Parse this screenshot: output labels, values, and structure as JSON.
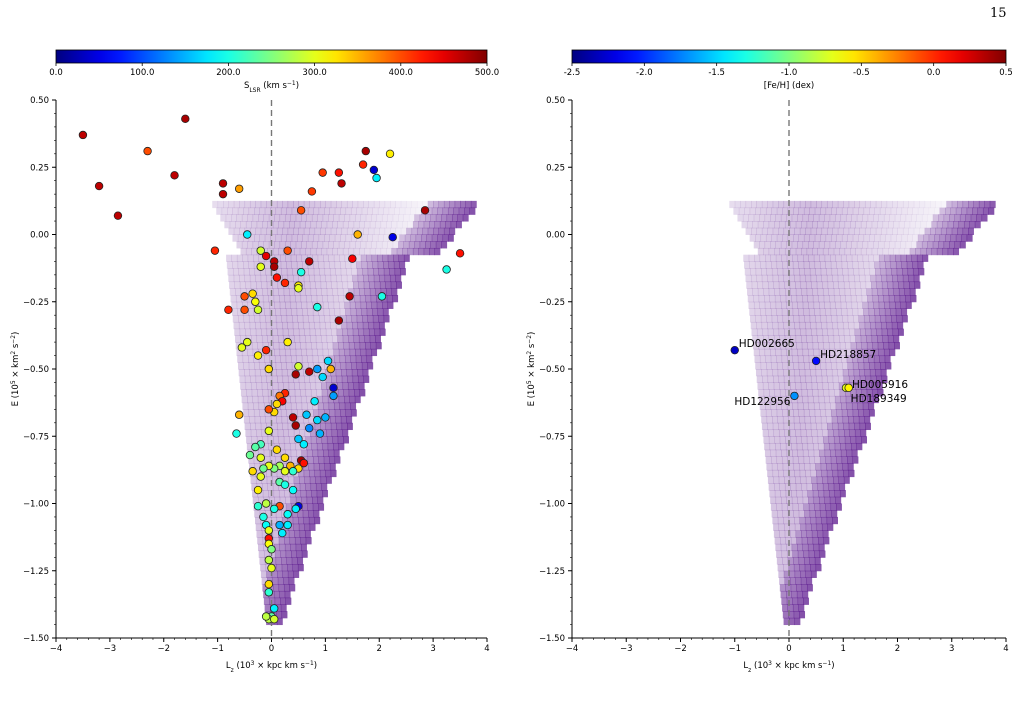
{
  "page": {
    "number": "15"
  },
  "chart_data": [
    {
      "type": "scatter",
      "xlabel": "L_z (10^3 × kpc km s^-1)",
      "ylabel": "E (10^5 × km^2 s^-2)",
      "xlim": [
        -4,
        4
      ],
      "ylim": [
        -1.5,
        0.5
      ],
      "xticks": [
        -4,
        -3,
        -2,
        -1,
        0,
        1,
        2,
        3,
        4
      ],
      "yticks": [
        -1.5,
        -1.25,
        -1.0,
        -0.75,
        -0.5,
        -0.25,
        0.0,
        0.25,
        0.5
      ],
      "xtick_labels": [
        "−4",
        "−3",
        "−2",
        "−1",
        "0",
        "1",
        "2",
        "3",
        "4"
      ],
      "ytick_labels": [
        "−1.50",
        "−1.25",
        "−1.00",
        "−0.75",
        "−0.50",
        "−0.25",
        "0.00",
        "0.25",
        "0.50"
      ],
      "vline_x": 0,
      "colorbar": {
        "label": "S_LSR (km s^-1)",
        "range": [
          0,
          500
        ],
        "ticks": [
          0,
          100,
          200,
          300,
          400,
          500
        ],
        "tick_labels": [
          "0.0",
          "100.0",
          "200.0",
          "300.0",
          "400.0",
          "500.0"
        ],
        "colormap": "jet"
      },
      "background": "density histogram (purple)",
      "points": [
        [
          -3.5,
          0.37,
          470
        ],
        [
          -3.2,
          0.18,
          470
        ],
        [
          -2.85,
          0.07,
          470
        ],
        [
          -2.3,
          0.31,
          400
        ],
        [
          -1.8,
          0.22,
          470
        ],
        [
          -1.6,
          0.43,
          480
        ],
        [
          -0.9,
          0.19,
          470
        ],
        [
          -0.9,
          0.15,
          470
        ],
        [
          -0.6,
          0.17,
          360
        ],
        [
          -0.45,
          0.0,
          180
        ],
        [
          -1.05,
          -0.06,
          420
        ],
        [
          -0.8,
          -0.28,
          420
        ],
        [
          -0.5,
          -0.28,
          400
        ],
        [
          -0.5,
          -0.23,
          400
        ],
        [
          -0.35,
          -0.22,
          330
        ],
        [
          -0.3,
          -0.25,
          310
        ],
        [
          -0.25,
          -0.28,
          290
        ],
        [
          -0.2,
          -0.06,
          290
        ],
        [
          -0.2,
          -0.12,
          300
        ],
        [
          -0.1,
          -0.08,
          450
        ],
        [
          0.05,
          -0.1,
          470
        ],
        [
          0.05,
          -0.12,
          480
        ],
        [
          0.3,
          -0.06,
          400
        ],
        [
          0.1,
          -0.16,
          430
        ],
        [
          0.25,
          -0.18,
          420
        ],
        [
          0.7,
          -0.1,
          470
        ],
        [
          0.5,
          -0.19,
          320
        ],
        [
          0.5,
          -0.2,
          300
        ],
        [
          0.55,
          -0.14,
          200
        ],
        [
          0.75,
          0.16,
          410
        ],
        [
          0.55,
          0.09,
          400
        ],
        [
          0.95,
          0.23,
          410
        ],
        [
          1.25,
          0.23,
          430
        ],
        [
          1.3,
          0.19,
          470
        ],
        [
          1.7,
          0.26,
          420
        ],
        [
          1.75,
          0.31,
          480
        ],
        [
          1.9,
          0.24,
          40
        ],
        [
          1.95,
          0.21,
          180
        ],
        [
          2.2,
          0.3,
          320
        ],
        [
          2.25,
          -0.01,
          50
        ],
        [
          1.6,
          0.0,
          350
        ],
        [
          1.5,
          -0.09,
          440
        ],
        [
          1.45,
          -0.23,
          470
        ],
        [
          2.05,
          -0.23,
          200
        ],
        [
          2.85,
          0.09,
          480
        ],
        [
          3.25,
          -0.13,
          200
        ],
        [
          3.5,
          -0.07,
          430
        ],
        [
          1.25,
          -0.32,
          480
        ],
        [
          0.85,
          -0.27,
          200
        ],
        [
          -0.55,
          -0.42,
          300
        ],
        [
          -0.45,
          -0.4,
          300
        ],
        [
          -0.25,
          -0.45,
          320
        ],
        [
          -0.1,
          -0.43,
          420
        ],
        [
          -0.05,
          -0.5,
          330
        ],
        [
          0.3,
          -0.4,
          320
        ],
        [
          0.5,
          -0.49,
          290
        ],
        [
          0.7,
          -0.51,
          470
        ],
        [
          0.45,
          -0.52,
          480
        ],
        [
          0.85,
          -0.5,
          140
        ],
        [
          1.05,
          -0.47,
          170
        ],
        [
          0.95,
          -0.53,
          170
        ],
        [
          1.1,
          -0.5,
          350
        ],
        [
          1.15,
          -0.57,
          40
        ],
        [
          0.25,
          -0.59,
          420
        ],
        [
          0.15,
          -0.6,
          380
        ],
        [
          0.2,
          -0.62,
          440
        ],
        [
          0.1,
          -0.63,
          330
        ],
        [
          0.05,
          -0.66,
          330
        ],
        [
          0.65,
          -0.67,
          160
        ],
        [
          0.8,
          -0.62,
          180
        ],
        [
          1.0,
          -0.68,
          150
        ],
        [
          1.15,
          -0.6,
          140
        ],
        [
          -0.05,
          -0.65,
          400
        ],
        [
          -0.6,
          -0.67,
          350
        ],
        [
          -0.65,
          -0.74,
          200
        ],
        [
          0.4,
          -0.68,
          470
        ],
        [
          0.45,
          -0.71,
          480
        ],
        [
          0.5,
          -0.76,
          160
        ],
        [
          0.7,
          -0.72,
          130
        ],
        [
          0.85,
          -0.69,
          170
        ],
        [
          0.9,
          -0.74,
          150
        ],
        [
          0.6,
          -0.78,
          180
        ],
        [
          -0.05,
          -0.73,
          300
        ],
        [
          -0.2,
          -0.78,
          220
        ],
        [
          -0.3,
          -0.79,
          230
        ],
        [
          -0.2,
          -0.83,
          300
        ],
        [
          -0.4,
          -0.82,
          240
        ],
        [
          -0.35,
          -0.88,
          330
        ],
        [
          0.1,
          -0.8,
          330
        ],
        [
          0.25,
          -0.83,
          330
        ],
        [
          0.35,
          -0.86,
          350
        ],
        [
          0.55,
          -0.84,
          480
        ],
        [
          0.5,
          -0.87,
          330
        ],
        [
          0.6,
          -0.85,
          430
        ],
        [
          0.4,
          -0.88,
          210
        ],
        [
          0.25,
          -0.88,
          300
        ],
        [
          0.15,
          -0.86,
          270
        ],
        [
          0.05,
          -0.87,
          250
        ],
        [
          -0.05,
          -0.86,
          300
        ],
        [
          -0.15,
          -0.87,
          240
        ],
        [
          -0.2,
          -0.9,
          300
        ],
        [
          -0.25,
          -0.95,
          320
        ],
        [
          0.15,
          -0.92,
          230
        ],
        [
          0.25,
          -0.93,
          200
        ],
        [
          0.4,
          -0.95,
          190
        ],
        [
          0.5,
          -1.01,
          50
        ],
        [
          0.45,
          -1.02,
          180
        ],
        [
          0.3,
          -1.04,
          190
        ],
        [
          0.15,
          -1.01,
          400
        ],
        [
          0.05,
          -1.02,
          200
        ],
        [
          -0.1,
          -1.0,
          280
        ],
        [
          -0.25,
          -1.01,
          210
        ],
        [
          -0.15,
          -1.05,
          200
        ],
        [
          -0.1,
          -1.08,
          190
        ],
        [
          -0.05,
          -1.1,
          300
        ],
        [
          0.15,
          -1.08,
          150
        ],
        [
          0.3,
          -1.08,
          180
        ],
        [
          0.2,
          -1.11,
          180
        ],
        [
          -0.05,
          -1.13,
          430
        ],
        [
          -0.05,
          -1.15,
          310
        ],
        [
          0.0,
          -1.17,
          250
        ],
        [
          -0.05,
          -1.21,
          280
        ],
        [
          0.0,
          -1.24,
          300
        ],
        [
          -0.05,
          -1.3,
          330
        ],
        [
          -0.05,
          -1.33,
          210
        ],
        [
          0.05,
          -1.39,
          180
        ],
        [
          0.0,
          -1.42,
          230
        ],
        [
          -0.05,
          -1.43,
          280
        ],
        [
          0.05,
          -1.43,
          290
        ],
        [
          -0.1,
          -1.42,
          280
        ]
      ]
    },
    {
      "type": "scatter",
      "xlabel": "L_z (10^3 × kpc km s^-1)",
      "ylabel": "E (10^5 × km^2 s^-2)",
      "xlim": [
        -4,
        4
      ],
      "ylim": [
        -1.5,
        0.5
      ],
      "xticks": [
        -4,
        -3,
        -2,
        -1,
        0,
        1,
        2,
        3,
        4
      ],
      "yticks": [
        -1.5,
        -1.25,
        -1.0,
        -0.75,
        -0.5,
        -0.25,
        0.0,
        0.25,
        0.5
      ],
      "xtick_labels": [
        "−4",
        "−3",
        "−2",
        "−1",
        "0",
        "1",
        "2",
        "3",
        "4"
      ],
      "ytick_labels": [
        "−1.50",
        "−1.25",
        "−1.00",
        "−0.75",
        "−0.50",
        "−0.25",
        "0.00",
        "0.25",
        "0.50"
      ],
      "vline_x": 0,
      "colorbar": {
        "label": "[Fe/H] (dex)",
        "range": [
          -2.5,
          0.5
        ],
        "ticks": [
          -2.5,
          -2.0,
          -1.5,
          -1.0,
          -0.5,
          0.0,
          0.5
        ],
        "tick_labels": [
          "-2.5",
          "-2.0",
          "-1.5",
          "-1.0",
          "-0.5",
          "0.0",
          "0.5"
        ],
        "colormap": "jet"
      },
      "background": "density histogram (purple)",
      "points": [
        {
          "x": -1.0,
          "y": -0.43,
          "c": -2.3,
          "label": "HD002665"
        },
        {
          "x": 0.5,
          "y": -0.47,
          "c": -2.1,
          "label": "HD218857"
        },
        {
          "x": 0.1,
          "y": -0.6,
          "c": -1.7,
          "label": "HD122956"
        },
        {
          "x": 1.05,
          "y": -0.57,
          "c": -0.7,
          "label": "HD005916"
        },
        {
          "x": 1.1,
          "y": -0.57,
          "c": -0.6,
          "label": "HD189349"
        }
      ]
    }
  ]
}
